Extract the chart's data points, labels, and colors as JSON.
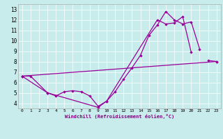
{
  "background_color": "#c8ecec",
  "line_color": "#990099",
  "xlim": [
    -0.5,
    23.5
  ],
  "ylim": [
    3.5,
    13.5
  ],
  "xticks": [
    0,
    1,
    2,
    3,
    4,
    5,
    6,
    7,
    8,
    9,
    10,
    11,
    12,
    13,
    14,
    15,
    16,
    17,
    18,
    19,
    20,
    21,
    22,
    23
  ],
  "yticks": [
    4,
    5,
    6,
    7,
    8,
    9,
    10,
    11,
    12,
    13
  ],
  "xlabel": "Windchill (Refroidissement éolien,°C)",
  "line1_x": [
    0,
    1,
    3,
    4,
    5,
    6,
    7,
    8,
    9,
    10,
    11,
    12,
    13,
    14,
    15,
    16,
    17,
    18,
    19,
    20,
    21
  ],
  "line1_y": [
    6.6,
    6.6,
    5.0,
    4.7,
    5.1,
    5.2,
    5.1,
    4.7,
    3.7,
    4.2,
    5.1,
    6.3,
    7.4,
    8.6,
    10.5,
    11.5,
    12.8,
    12.0,
    11.6,
    11.8,
    9.2
  ],
  "line2_x": [
    0,
    3,
    9,
    10,
    16,
    17,
    18,
    19,
    20
  ],
  "line2_y": [
    6.6,
    5.0,
    3.6,
    4.2,
    12.0,
    11.6,
    11.7,
    12.3,
    8.9
  ],
  "line3_x": [
    0,
    23
  ],
  "line3_y": [
    6.6,
    8.0
  ],
  "marker_x": [
    0,
    3,
    9,
    10,
    16,
    17,
    18,
    19,
    20,
    22,
    23
  ],
  "marker_y": [
    6.6,
    5.0,
    3.6,
    4.2,
    12.0,
    11.6,
    11.7,
    12.3,
    8.9,
    8.1,
    8.0
  ]
}
